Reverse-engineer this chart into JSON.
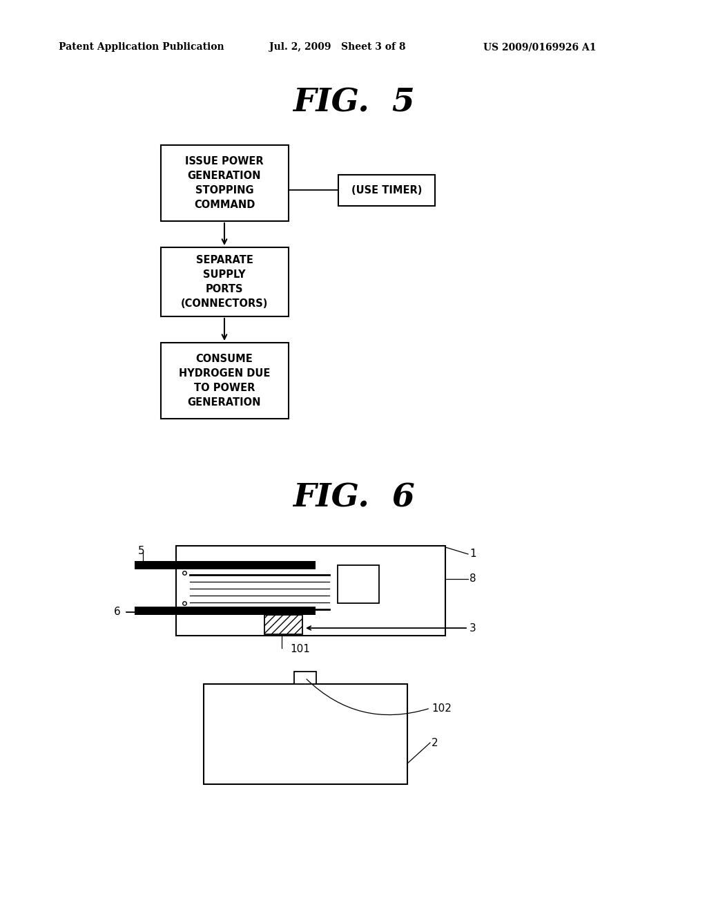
{
  "bg_color": "#ffffff",
  "header_left": "Patent Application Publication",
  "header_mid": "Jul. 2, 2009   Sheet 3 of 8",
  "header_right": "US 2009/0169926 A1",
  "fig5_title": "FIG.  5",
  "fig6_title": "FIG.  6",
  "box1_text": "ISSUE POWER\nGENERATION\nSTOPPING\nCOMMAND",
  "box2_text": "SEPARATE\nSUPPLY\nPORTS\n(CONNECTORS)",
  "box3_text": "CONSUME\nHYDROGEN DUE\nTO POWER\nGENERATION",
  "timer_text": "(USE TIMER)",
  "label_1": "1",
  "label_2": "2",
  "label_3": "3",
  "label_5": "5",
  "label_6": "6",
  "label_8": "8",
  "label_101": "101",
  "label_102": "102"
}
